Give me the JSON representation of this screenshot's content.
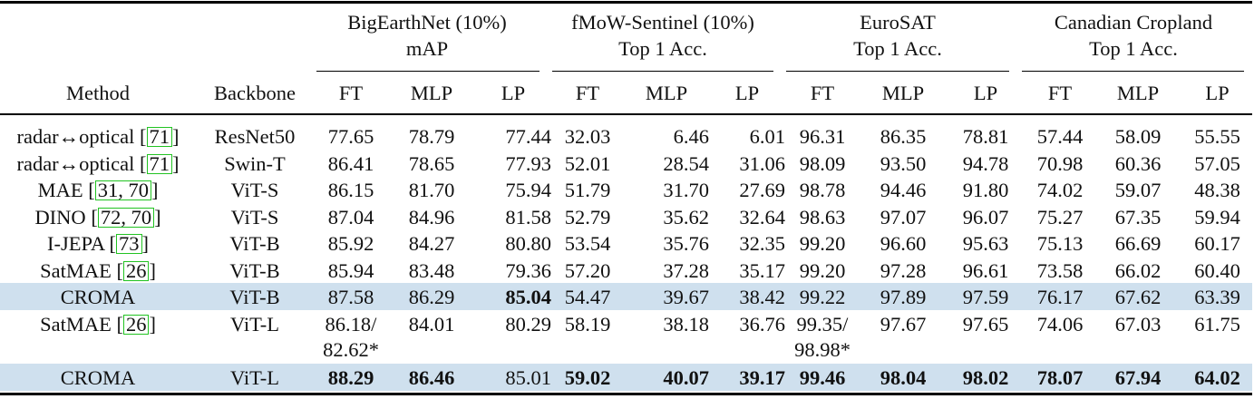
{
  "header": {
    "groups": [
      {
        "name": "BigEarthNet (10%)",
        "metric": "mAP"
      },
      {
        "name": "fMoW-Sentinel (10%)",
        "metric": "Top 1 Acc."
      },
      {
        "name": "EuroSAT",
        "metric": "Top 1 Acc."
      },
      {
        "name": "Canadian Cropland",
        "metric": "Top 1 Acc."
      }
    ],
    "method": "Method",
    "backbone": "Backbone",
    "sub": [
      "FT",
      "MLP",
      "LP",
      "FT",
      "MLP",
      "LP",
      "FT",
      "MLP",
      "LP",
      "FT",
      "MLP",
      "LP"
    ]
  },
  "rows": [
    {
      "method": "radar↔optical ",
      "refs": "71",
      "backbone": "ResNet50",
      "values": [
        "77.65",
        "78.79",
        "77.44",
        "32.03",
        "6.46",
        "6.01",
        "96.31",
        "86.35",
        "78.81",
        "57.44",
        "58.09",
        "55.55"
      ]
    },
    {
      "method": "radar↔optical ",
      "refs": "71",
      "backbone": "Swin-T",
      "values": [
        "86.41",
        "78.65",
        "77.93",
        "52.01",
        "28.54",
        "31.06",
        "98.09",
        "93.50",
        "94.78",
        "70.98",
        "60.36",
        "57.05"
      ]
    },
    {
      "method": "MAE ",
      "refs": "31, 70",
      "backbone": "ViT-S",
      "values": [
        "86.15",
        "81.70",
        "75.94",
        "51.79",
        "31.70",
        "27.69",
        "98.78",
        "94.46",
        "91.80",
        "74.02",
        "59.07",
        "48.38"
      ]
    },
    {
      "method": "DINO ",
      "refs": "72, 70",
      "backbone": "ViT-S",
      "values": [
        "87.04",
        "84.96",
        "81.58",
        "52.79",
        "35.62",
        "32.64",
        "98.63",
        "97.07",
        "96.07",
        "75.27",
        "67.35",
        "59.94"
      ]
    },
    {
      "method": "I-JEPA ",
      "refs": "73",
      "backbone": "ViT-B",
      "values": [
        "85.92",
        "84.27",
        "80.80",
        "53.54",
        "35.76",
        "32.35",
        "99.20",
        "96.60",
        "95.63",
        "75.13",
        "66.69",
        "60.17"
      ]
    },
    {
      "method": "SatMAE ",
      "refs": "26",
      "backbone": "ViT-B",
      "values": [
        "85.94",
        "83.48",
        "79.36",
        "57.20",
        "37.28",
        "35.17",
        "99.20",
        "97.28",
        "96.61",
        "73.58",
        "66.02",
        "60.40"
      ]
    },
    {
      "method": "CROMA",
      "refs": "",
      "backbone": "ViT-B",
      "values": [
        "87.58",
        "86.29",
        "85.04",
        "54.47",
        "39.67",
        "38.42",
        "99.22",
        "97.89",
        "97.59",
        "76.17",
        "67.62",
        "63.39"
      ]
    },
    {
      "method": "SatMAE ",
      "refs": "26",
      "backbone": "ViT-L",
      "values": [
        "86.18/",
        "84.01",
        "80.29",
        "58.19",
        "38.18",
        "36.76",
        "99.35/",
        "97.67",
        "97.65",
        "74.06",
        "67.03",
        "61.75"
      ],
      "extra": [
        "82.62*",
        "",
        "",
        "",
        "",
        "",
        "98.98*",
        "",
        "",
        "",
        "",
        ""
      ]
    },
    {
      "method": "CROMA",
      "refs": "",
      "backbone": "ViT-L",
      "values": [
        "88.29",
        "86.46",
        "85.01",
        "59.02",
        "40.07",
        "39.17",
        "99.46",
        "98.04",
        "98.02",
        "78.07",
        "67.94",
        "64.02"
      ]
    }
  ],
  "bold_cells": [
    [
      6,
      2
    ],
    [
      8,
      0
    ],
    [
      8,
      1
    ],
    [
      8,
      3
    ],
    [
      8,
      4
    ],
    [
      8,
      5
    ],
    [
      8,
      6
    ],
    [
      8,
      7
    ],
    [
      8,
      8
    ],
    [
      8,
      9
    ],
    [
      8,
      10
    ],
    [
      8,
      11
    ]
  ],
  "highlight_color": "#cfe0ee",
  "ref_box_color": "#22c322"
}
